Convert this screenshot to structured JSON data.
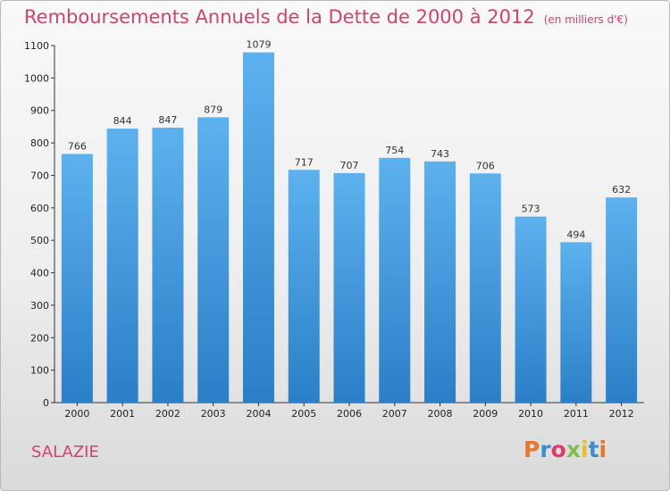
{
  "header": {
    "title": "Remboursements Annuels de la Dette de 2000 à 2012",
    "subtitle": "(en milliers d'€)"
  },
  "footer": {
    "place": "SALAZIE",
    "logo": "Proxiti",
    "logo_colors": [
      "#e8762c",
      "#3a8fd0",
      "#e03a6a",
      "#7cc04b",
      "#f2b72a",
      "#3a8fd0",
      "#e8762c"
    ]
  },
  "colors": {
    "bar_light": "#5cb1ee",
    "bar_dark": "#2b7fc7",
    "title": "#d1426c"
  },
  "chart_data": {
    "type": "bar",
    "title": "Remboursements Annuels de la Dette de 2000 à 2012",
    "subtitle": "(en milliers d'€)",
    "categories": [
      "2000",
      "2001",
      "2002",
      "2003",
      "2004",
      "2005",
      "2006",
      "2007",
      "2008",
      "2009",
      "2010",
      "2011",
      "2012"
    ],
    "values": [
      766,
      844,
      847,
      879,
      1079,
      717,
      707,
      754,
      743,
      706,
      573,
      494,
      632
    ],
    "ylim": [
      0,
      1100
    ],
    "yticks": [
      0,
      100,
      200,
      300,
      400,
      500,
      600,
      700,
      800,
      900,
      1000,
      1100
    ],
    "grid": false,
    "legend": "none"
  }
}
